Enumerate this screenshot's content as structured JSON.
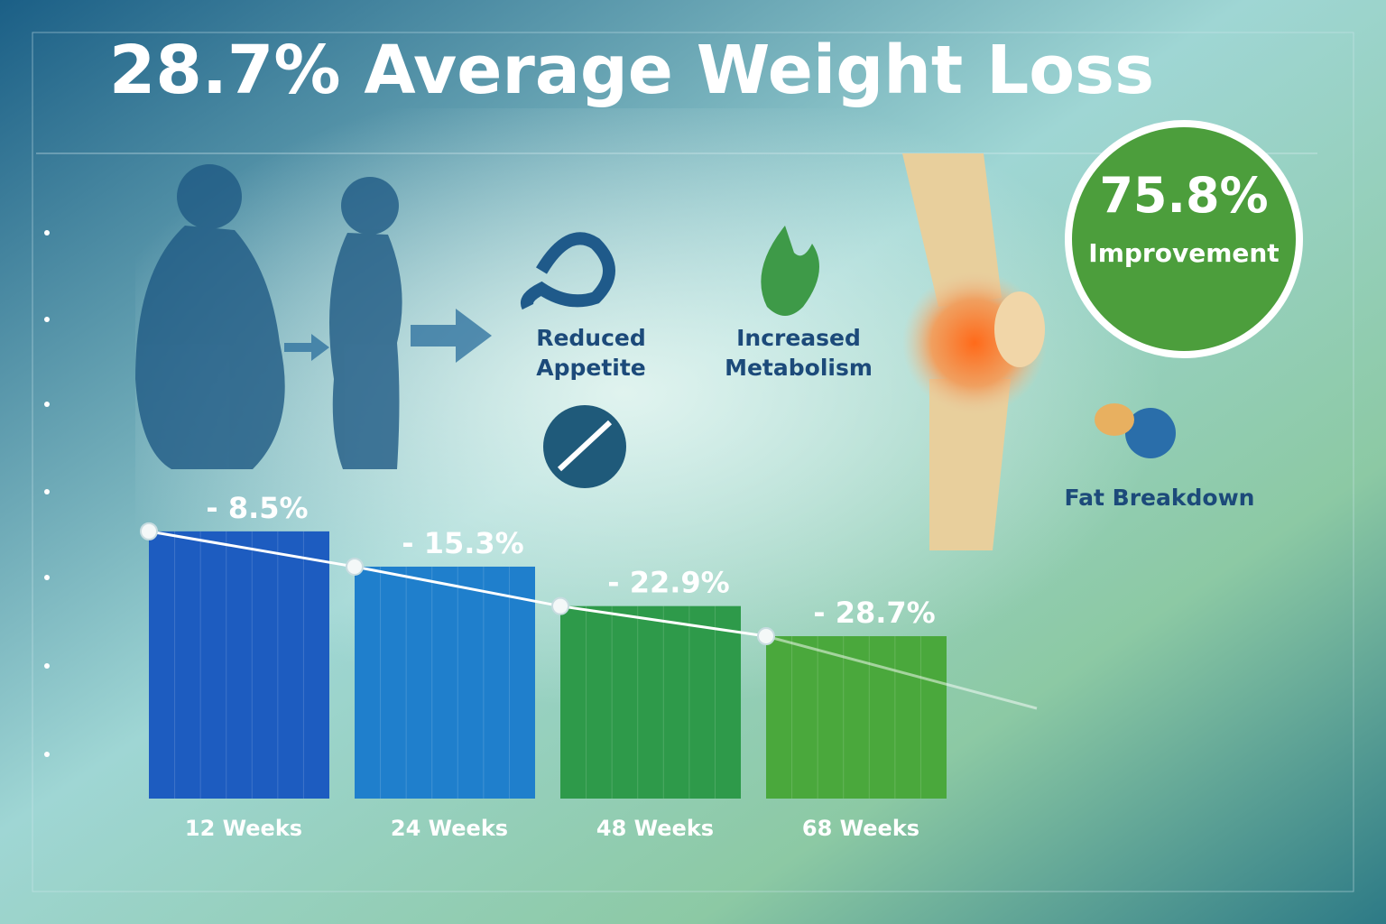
{
  "chart_data": {
    "type": "bar",
    "title": "28.7% Average Weight Loss",
    "categories": [
      "12 Weeks",
      "24 Weeks",
      "48 Weeks",
      "68 Weeks"
    ],
    "values": [
      -8.5,
      -15.3,
      -22.9,
      -28.7
    ],
    "value_labels": [
      "- 8.5%",
      "- 15.3%",
      "- 22.9%",
      "- 28.7%"
    ],
    "colors": [
      "#1d5cc0",
      "#1f7fcc",
      "#2e9a4a",
      "#4aa83c"
    ],
    "ylim": [
      -60,
      0
    ],
    "trend_line": true,
    "callout": {
      "value": "75.8%",
      "label": "Improvement"
    },
    "benefits": [
      "Reduced Appetite",
      "Increased Metabolism",
      "Fat Breakdown"
    ]
  }
}
